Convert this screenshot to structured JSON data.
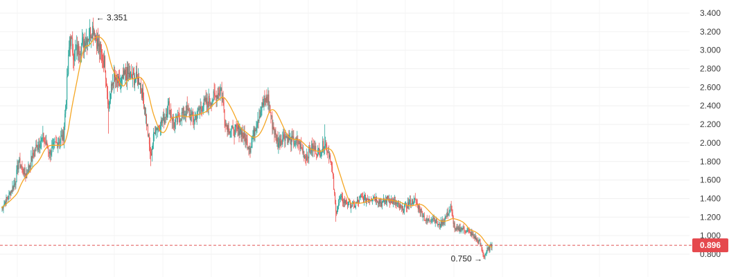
{
  "chart_data": {
    "type": "candlestick",
    "title": "",
    "xlabel": "",
    "ylabel": "",
    "ylim": [
      0.7,
      3.45
    ],
    "y_ticks": [
      "3.400",
      "3.200",
      "3.000",
      "2.800",
      "2.600",
      "2.400",
      "2.200",
      "2.000",
      "1.800",
      "1.600",
      "1.400",
      "1.200",
      "1.000",
      "0.800"
    ],
    "grid": true,
    "colors": {
      "up": "#26a69a",
      "down": "#ef5350",
      "ma": "#f5a623",
      "price_line": "#e05252"
    },
    "current_price": {
      "value": 0.896,
      "label": "0.896"
    },
    "annotations": [
      {
        "name": "high",
        "value": 3.351,
        "text": "← 3.351"
      },
      {
        "name": "low",
        "value": 0.75,
        "text": "0.750 →"
      }
    ],
    "close_path": [
      {
        "i": 0,
        "v": 1.3
      },
      {
        "i": 10,
        "v": 1.42
      },
      {
        "i": 20,
        "v": 1.58
      },
      {
        "i": 25,
        "v": 1.8
      },
      {
        "i": 35,
        "v": 1.65
      },
      {
        "i": 50,
        "v": 1.95
      },
      {
        "i": 60,
        "v": 2.05
      },
      {
        "i": 70,
        "v": 1.9
      },
      {
        "i": 80,
        "v": 2.0
      },
      {
        "i": 90,
        "v": 2.08
      },
      {
        "i": 96,
        "v": 2.75
      },
      {
        "i": 99,
        "v": 3.15
      },
      {
        "i": 105,
        "v": 2.95
      },
      {
        "i": 115,
        "v": 3.05
      },
      {
        "i": 125,
        "v": 3.15
      },
      {
        "i": 133,
        "v": 3.25
      },
      {
        "i": 140,
        "v": 3.05
      },
      {
        "i": 150,
        "v": 2.85
      },
      {
        "i": 155,
        "v": 2.4
      },
      {
        "i": 162,
        "v": 2.7
      },
      {
        "i": 172,
        "v": 2.62
      },
      {
        "i": 180,
        "v": 2.75
      },
      {
        "i": 190,
        "v": 2.7
      },
      {
        "i": 200,
        "v": 2.68
      },
      {
        "i": 207,
        "v": 2.4
      },
      {
        "i": 212,
        "v": 2.1
      },
      {
        "i": 216,
        "v": 1.85
      },
      {
        "i": 222,
        "v": 2.15
      },
      {
        "i": 232,
        "v": 2.22
      },
      {
        "i": 242,
        "v": 2.4
      },
      {
        "i": 250,
        "v": 2.2
      },
      {
        "i": 258,
        "v": 2.28
      },
      {
        "i": 268,
        "v": 2.35
      },
      {
        "i": 278,
        "v": 2.25
      },
      {
        "i": 290,
        "v": 2.4
      },
      {
        "i": 300,
        "v": 2.45
      },
      {
        "i": 310,
        "v": 2.5
      },
      {
        "i": 318,
        "v": 2.58
      },
      {
        "i": 325,
        "v": 2.2
      },
      {
        "i": 335,
        "v": 2.12
      },
      {
        "i": 345,
        "v": 2.15
      },
      {
        "i": 352,
        "v": 2.05
      },
      {
        "i": 360,
        "v": 1.95
      },
      {
        "i": 370,
        "v": 2.25
      },
      {
        "i": 380,
        "v": 2.45
      },
      {
        "i": 386,
        "v": 2.48
      },
      {
        "i": 392,
        "v": 2.2
      },
      {
        "i": 400,
        "v": 2.0
      },
      {
        "i": 410,
        "v": 2.08
      },
      {
        "i": 420,
        "v": 2.02
      },
      {
        "i": 430,
        "v": 2.0
      },
      {
        "i": 440,
        "v": 1.85
      },
      {
        "i": 450,
        "v": 1.95
      },
      {
        "i": 460,
        "v": 1.9
      },
      {
        "i": 468,
        "v": 2.0
      },
      {
        "i": 476,
        "v": 1.85
      },
      {
        "i": 480,
        "v": 1.6
      },
      {
        "i": 484,
        "v": 1.25
      },
      {
        "i": 490,
        "v": 1.4
      },
      {
        "i": 500,
        "v": 1.35
      },
      {
        "i": 510,
        "v": 1.32
      },
      {
        "i": 520,
        "v": 1.4
      },
      {
        "i": 530,
        "v": 1.4
      },
      {
        "i": 540,
        "v": 1.42
      },
      {
        "i": 550,
        "v": 1.35
      },
      {
        "i": 560,
        "v": 1.4
      },
      {
        "i": 570,
        "v": 1.35
      },
      {
        "i": 580,
        "v": 1.28
      },
      {
        "i": 590,
        "v": 1.35
      },
      {
        "i": 598,
        "v": 1.38
      },
      {
        "i": 606,
        "v": 1.28
      },
      {
        "i": 615,
        "v": 1.15
      },
      {
        "i": 625,
        "v": 1.2
      },
      {
        "i": 633,
        "v": 1.1
      },
      {
        "i": 642,
        "v": 1.18
      },
      {
        "i": 650,
        "v": 1.3
      },
      {
        "i": 657,
        "v": 1.05
      },
      {
        "i": 665,
        "v": 1.08
      },
      {
        "i": 675,
        "v": 1.05
      },
      {
        "i": 685,
        "v": 0.98
      },
      {
        "i": 692,
        "v": 0.92
      },
      {
        "i": 698,
        "v": 0.78
      },
      {
        "i": 703,
        "v": 0.84
      },
      {
        "i": 710,
        "v": 0.896
      }
    ]
  }
}
